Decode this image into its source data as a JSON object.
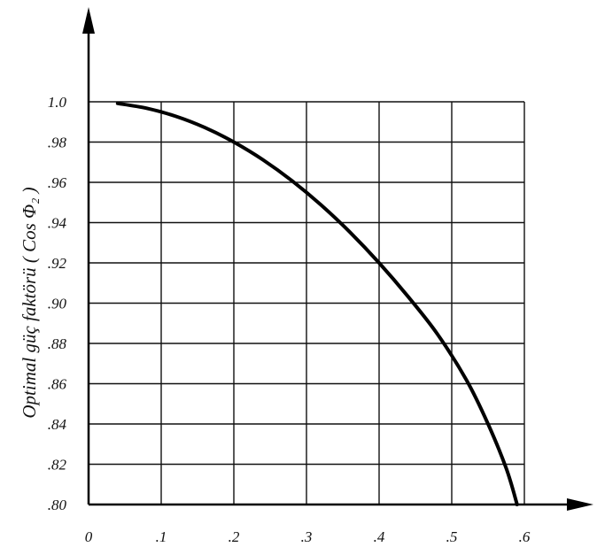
{
  "chart_data": {
    "type": "line",
    "ylabel": "Optimal güç faktörü ( Cos Φ₂ )",
    "xlabel": "",
    "title": "",
    "xlim": [
      0,
      0.6
    ],
    "ylim": [
      0.8,
      1.0
    ],
    "grid": true,
    "x_ticks": [
      {
        "value": 0,
        "label": "0"
      },
      {
        "value": 0.1,
        "label": ".1"
      },
      {
        "value": 0.2,
        "label": ".2"
      },
      {
        "value": 0.3,
        "label": ".3"
      },
      {
        "value": 0.4,
        "label": ".4"
      },
      {
        "value": 0.5,
        "label": ".5"
      },
      {
        "value": 0.6,
        "label": ".6"
      }
    ],
    "y_ticks": [
      {
        "value": 1.0,
        "label": "1.0"
      },
      {
        "value": 0.98,
        "label": ".98"
      },
      {
        "value": 0.96,
        "label": ".96"
      },
      {
        "value": 0.94,
        "label": ".94"
      },
      {
        "value": 0.92,
        "label": ".92"
      },
      {
        "value": 0.9,
        "label": ".90"
      },
      {
        "value": 0.88,
        "label": ".88"
      },
      {
        "value": 0.86,
        "label": ".86"
      },
      {
        "value": 0.84,
        "label": ".84"
      },
      {
        "value": 0.82,
        "label": ".82"
      },
      {
        "value": 0.8,
        "label": ".80"
      }
    ],
    "series": [
      {
        "x": [
          0.04,
          0.08,
          0.12,
          0.16,
          0.2,
          0.24,
          0.28,
          0.32,
          0.36,
          0.4,
          0.44,
          0.48,
          0.52,
          0.55,
          0.575,
          0.59
        ],
        "y": [
          0.9992,
          0.9968,
          0.9928,
          0.9872,
          0.98,
          0.9712,
          0.9608,
          0.9488,
          0.9352,
          0.92,
          0.9032,
          0.8848,
          0.862,
          0.84,
          0.818,
          0.8
        ]
      }
    ],
    "colors": {
      "curve": "#000000",
      "grid": "#111111"
    }
  }
}
